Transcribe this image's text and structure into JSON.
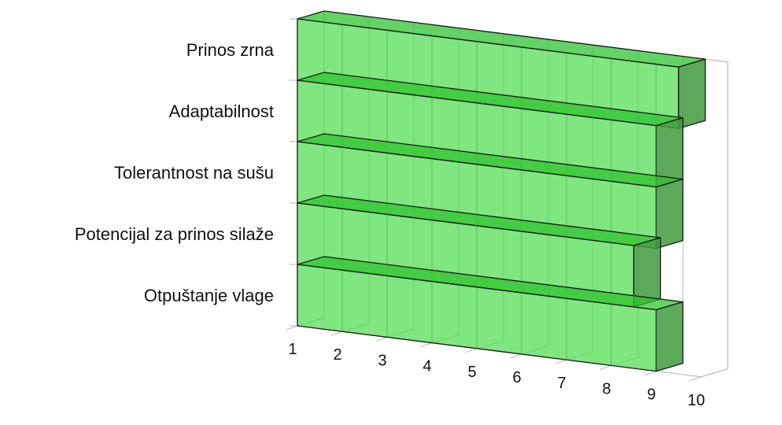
{
  "chart_data": {
    "type": "bar",
    "orientation": "horizontal",
    "style": "3d",
    "categories": [
      "Prinos zrna",
      "Adaptabilnost",
      "Tolerantnost na sušu",
      "Potencijal za prinos silaže",
      "Otpuštanje vlage"
    ],
    "values": [
      9.5,
      9,
      9,
      8.5,
      9
    ],
    "xlim": [
      1,
      10
    ],
    "x_ticks": [
      "1",
      "2",
      "3",
      "4",
      "5",
      "6",
      "7",
      "8",
      "9",
      "10"
    ],
    "grid": true,
    "legend": "none",
    "colors": {
      "bar_fill": "#4fdc4f",
      "bar_top": "#2fc42f",
      "bar_side": "#3f9a3f",
      "bar_edge": "#1a1a1a",
      "grid": "#b9b9b9"
    }
  }
}
